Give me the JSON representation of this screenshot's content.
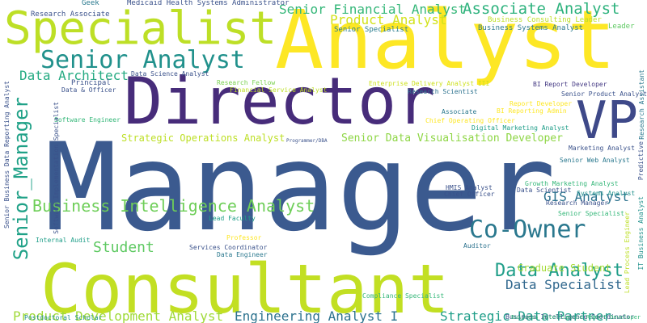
{
  "word_cloud": {
    "words": [
      {
        "text": "Manager",
        "color": "#3b5a8f"
      },
      {
        "text": "Consultant",
        "color": "#c2df23"
      },
      {
        "text": "Director",
        "color": "#472c7a"
      },
      {
        "text": "Analyst",
        "color": "#fde725"
      },
      {
        "text": "Specialist",
        "color": "#bddf26"
      },
      {
        "text": "VP",
        "color": "#3e4989"
      },
      {
        "text": "Senior Analyst",
        "color": "#21918c"
      },
      {
        "text": "Senior_Manager",
        "color": "#1fa187"
      },
      {
        "text": "Co-Owner",
        "color": "#2a788e"
      },
      {
        "text": "Data Analyst",
        "color": "#1f9e89"
      },
      {
        "text": "Business Intelligence Analyst",
        "color": "#6ece58"
      },
      {
        "text": "Associate Analyst",
        "color": "#2db27d"
      },
      {
        "text": "Senior Financial Analyst",
        "color": "#35b779"
      },
      {
        "text": "Product Analyst",
        "color": "#d2e21b"
      },
      {
        "text": "Data Architect",
        "color": "#25ab82"
      },
      {
        "text": "Student",
        "color": "#5ec962"
      },
      {
        "text": "Data Specialist",
        "color": "#31688e"
      },
      {
        "text": "GIS Analyst",
        "color": "#2c728e"
      },
      {
        "text": "Product Development Analyst",
        "color": "#a0da39"
      },
      {
        "text": "Engineering Analyst I",
        "color": "#2c728e"
      },
      {
        "text": "Strategic Data Partner",
        "color": "#1f9e89"
      },
      {
        "text": "Senior Data Visualisation Developer",
        "color": "#8ed645"
      },
      {
        "text": "Strategic Operations Analyst",
        "color": "#bddf26"
      },
      {
        "text": "Graduate Student",
        "color": "#a5db36"
      },
      {
        "text": "Research Associate",
        "color": "#3b528b"
      },
      {
        "text": "Geek",
        "color": "#29798e"
      },
      {
        "text": "Medicaid Health Systems Administrator",
        "color": "#3b528b"
      },
      {
        "text": "Business Consulting Leader",
        "color": "#bddf26"
      },
      {
        "text": "Leader",
        "color": "#5ec962"
      },
      {
        "text": "Senior Specialist",
        "color": "#287c8e"
      },
      {
        "text": "Business Systems Analyst",
        "color": "#2a788e"
      },
      {
        "text": "Data Science Analyst",
        "color": "#3b528b"
      },
      {
        "text": "Principal",
        "color": "#3b528b"
      },
      {
        "text": "Data & Officer",
        "color": "#3b528b"
      },
      {
        "text": "Research Fellow",
        "color": "#7ad151"
      },
      {
        "text": "Financial Service Analyst",
        "color": "#bddf26"
      },
      {
        "text": "Enterprise Delivery Analyst III",
        "color": "#cde11d"
      },
      {
        "text": "Research Scientist",
        "color": "#2c728e"
      },
      {
        "text": "BI Report Developer",
        "color": "#443983"
      },
      {
        "text": "Senior Product Analyst",
        "color": "#3b528b"
      },
      {
        "text": "Research Assistant",
        "color": "#2a788e"
      },
      {
        "text": "Report Developer",
        "color": "#fde725"
      },
      {
        "text": "BI Reporting Admin",
        "color": "#fde725"
      },
      {
        "text": "Associate",
        "color": "#2a788e"
      },
      {
        "text": "Chief Operating Officer",
        "color": "#fde725"
      },
      {
        "text": "Digital Marketing Analyst",
        "color": "#1f9e89"
      },
      {
        "text": "Software Engineer",
        "color": "#35b779"
      },
      {
        "text": "Programmer/DBA",
        "color": "#3b528b"
      },
      {
        "text": "Marketing Analyst",
        "color": "#3b528b"
      },
      {
        "text": "Senior Web Analyst",
        "color": "#2a788e"
      },
      {
        "text": "Predictive",
        "color": "#3b528b"
      },
      {
        "text": "Growth Marketing Analyst",
        "color": "#35b779"
      },
      {
        "text": "HMIS Analyst",
        "color": "#3b528b"
      },
      {
        "text": "Data Scientist",
        "color": "#3b528b"
      },
      {
        "text": "Systems Analyst",
        "color": "#21918c"
      },
      {
        "text": "Chief Officer",
        "color": "#3b528b"
      },
      {
        "text": "Research Manager",
        "color": "#3b528b"
      },
      {
        "text": "Senior Specialist",
        "color": "#35b779"
      },
      {
        "text": "Lead Faculty",
        "color": "#1f9e89"
      },
      {
        "text": "Professor",
        "color": "#fde725"
      },
      {
        "text": "Services Coordinator",
        "color": "#3b528b"
      },
      {
        "text": "Data Engineer",
        "color": "#2a788e"
      },
      {
        "text": "Internal Audit",
        "color": "#1f9e89"
      },
      {
        "text": "Compliance Specialist",
        "color": "#35b779"
      },
      {
        "text": "Auditor",
        "color": "#2c728e"
      },
      {
        "text": "Business Intelligence Coordinator",
        "color": "#3b528b"
      },
      {
        "text": "Postdoctoral Scholar",
        "color": "#21918c"
      },
      {
        "text": "Business Intelligence Report Developer",
        "color": "#35b779"
      },
      {
        "text": "Senior Business Data Reporting Analyst",
        "color": "#3b528b"
      },
      {
        "text": "Software Implementation Specialist",
        "color": "#3b528b"
      },
      {
        "text": "Lead Process Engineer",
        "color": "#bddf26"
      },
      {
        "text": "IT Business Analyst",
        "color": "#21918c"
      }
    ]
  }
}
